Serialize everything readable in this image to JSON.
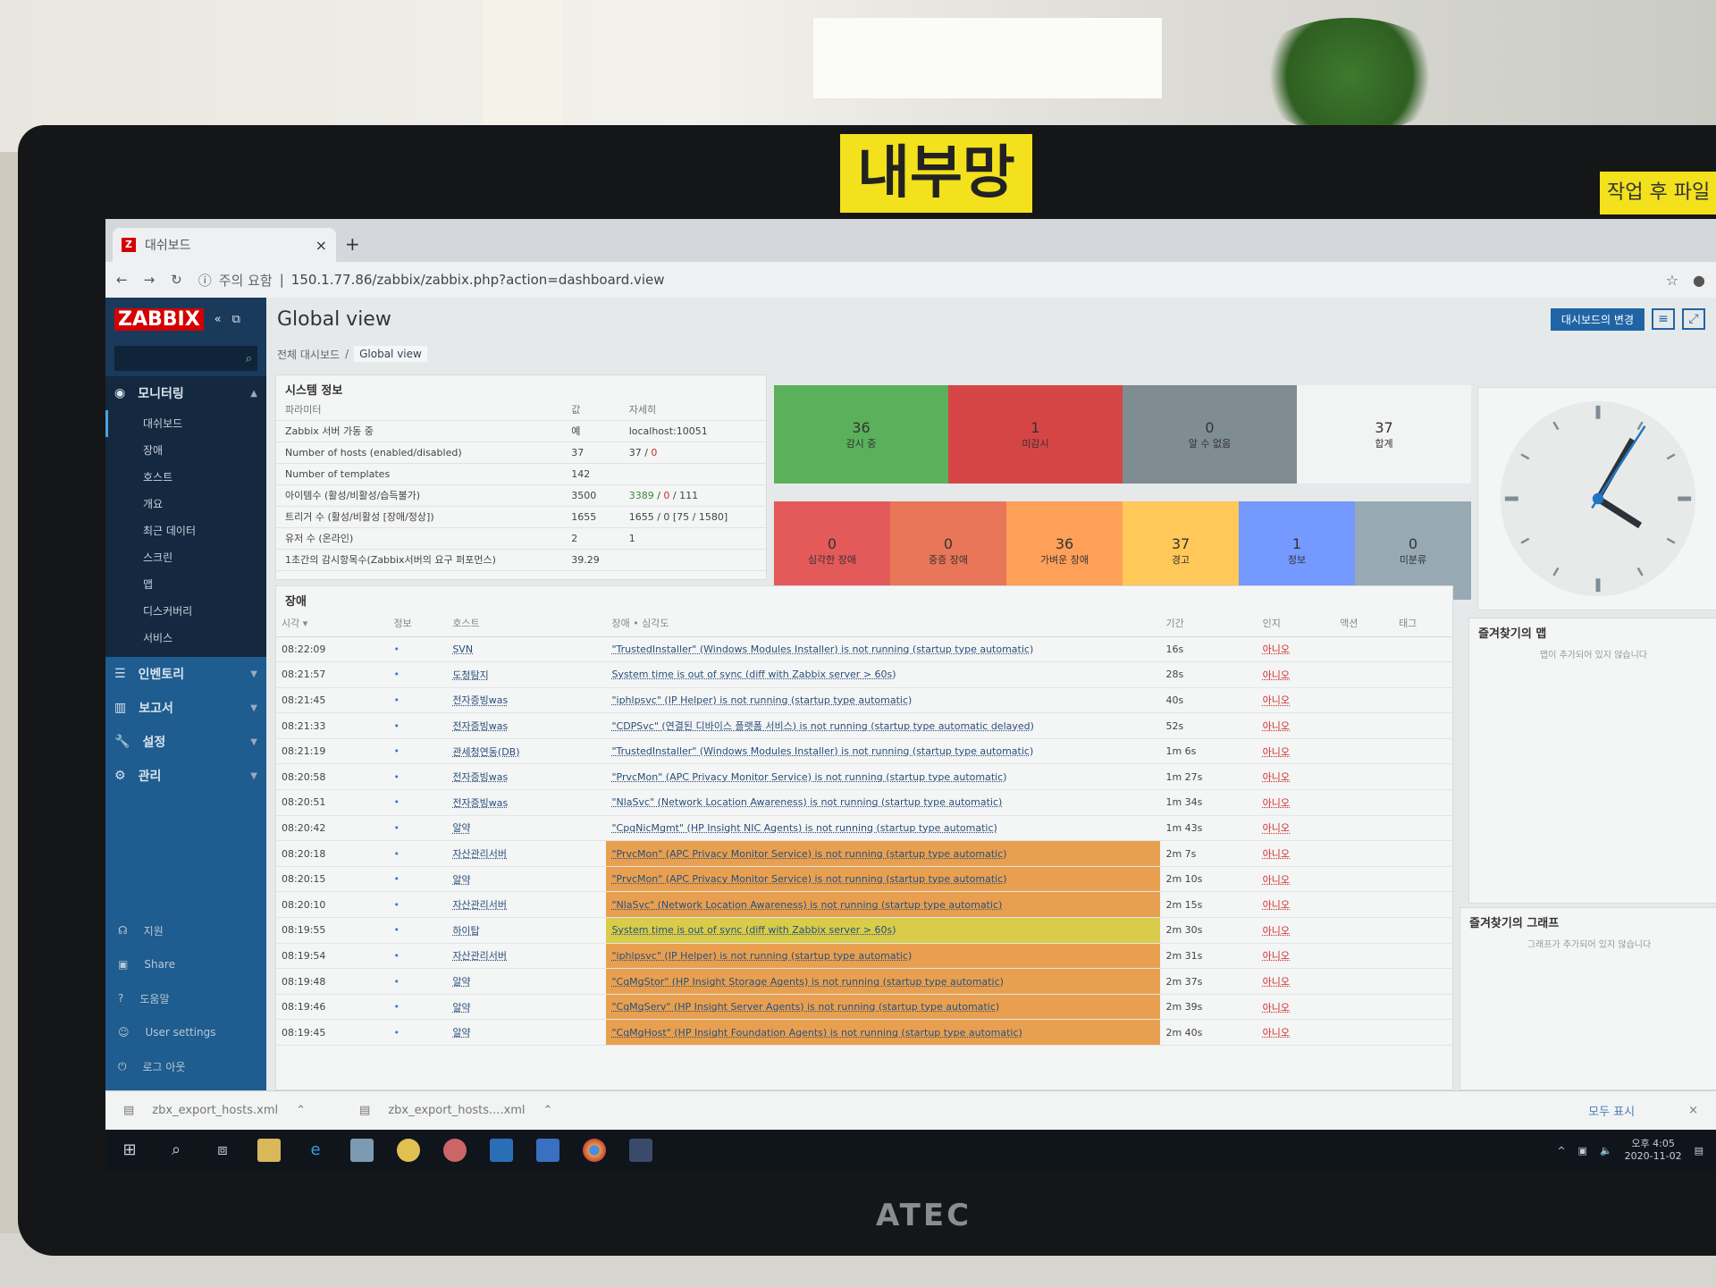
{
  "room": {
    "sticky_note": "내부망",
    "sticky_note2": "작업 후 파일",
    "monitor_brand": "ATEC"
  },
  "browser": {
    "tab_title": "대쉬보드",
    "tab_close": "×",
    "new_tab": "+",
    "security": "주의 요함",
    "url": "150.1.77.86/zabbix/zabbix.php?action=dashboard.view"
  },
  "sidebar": {
    "logo": "ZABBIX",
    "monitoring": "모니터링",
    "monitoring_items": [
      "대쉬보드",
      "장애",
      "호스트",
      "개요",
      "최근 데이터",
      "스크린",
      "맵",
      "디스커버리",
      "서비스"
    ],
    "sections": [
      {
        "label": "인벤토리",
        "icon": "list-icon"
      },
      {
        "label": "보고서",
        "icon": "report-icon"
      },
      {
        "label": "설정",
        "icon": "wrench-icon"
      },
      {
        "label": "관리",
        "icon": "gear-icon"
      }
    ],
    "bottom": [
      {
        "label": "지원",
        "icon": "support-icon"
      },
      {
        "label": "Share",
        "icon": "share-icon"
      },
      {
        "label": "도움말",
        "icon": "help-icon"
      },
      {
        "label": "User settings",
        "icon": "user-icon"
      },
      {
        "label": "로그 아웃",
        "icon": "power-icon"
      }
    ]
  },
  "header": {
    "title": "Global view",
    "edit_dashboard": "대시보드의 변경"
  },
  "breadcrumb": [
    "전체 대시보드",
    "Global view"
  ],
  "system_info": {
    "title": "시스템 정보",
    "columns": [
      "파라미터",
      "값",
      "자세히"
    ],
    "rows": [
      {
        "param": "Zabbix 서버 가동 중",
        "value": "예",
        "detail": "localhost:10051"
      },
      {
        "param": "Number of hosts (enabled/disabled)",
        "value": "37",
        "detail": "37 / 0"
      },
      {
        "param": "Number of templates",
        "value": "142",
        "detail": ""
      },
      {
        "param": "아이템수 (활성/비활성/습득불가)",
        "value": "3500",
        "detail": "3389 / 0 / 111"
      },
      {
        "param": "트리거 수 (활성/비활성 [장애/정상])",
        "value": "1655",
        "detail": "1655 / 0 [75 / 1580]"
      },
      {
        "param": "유저 수 (온라인)",
        "value": "2",
        "detail": "1"
      },
      {
        "param": "1초간의 감시항목수(Zabbix서버의 요구 퍼포먼스)",
        "value": "39.29",
        "detail": ""
      }
    ]
  },
  "host_availability": [
    {
      "count": "36",
      "label": "감시 중",
      "color": "#5bb05b"
    },
    {
      "count": "1",
      "label": "미감시",
      "color": "#d64545"
    },
    {
      "count": "0",
      "label": "알 수 없음",
      "color": "#7f8c92"
    },
    {
      "count": "37",
      "label": "합계",
      "color": "#f2f3f3"
    }
  ],
  "problems_by_severity": [
    {
      "count": "0",
      "label": "심각한 장애",
      "color": "#e45959"
    },
    {
      "count": "0",
      "label": "중증 장애",
      "color": "#e97659"
    },
    {
      "count": "36",
      "label": "가벼운 장애",
      "color": "#ffa059"
    },
    {
      "count": "37",
      "label": "경고",
      "color": "#ffc859"
    },
    {
      "count": "1",
      "label": "정보",
      "color": "#7499ff"
    },
    {
      "count": "0",
      "label": "미분류",
      "color": "#97aab3"
    }
  ],
  "clock": {
    "hours": 4,
    "minutes": 5
  },
  "problems": {
    "title": "장애",
    "columns": [
      "시각 ▾",
      "정보",
      "호스트",
      "장애 • 심각도",
      "기간",
      "인지",
      "액션",
      "태그"
    ],
    "rows": [
      {
        "time": "08:22:09",
        "host": "SVN",
        "desc": "\"TrustedInstaller\" (Windows Modules Installer) is not running (startup type automatic)",
        "duration": "16s",
        "ack": "아니오",
        "severity": ""
      },
      {
        "time": "08:21:57",
        "host": "도청탐지",
        "desc": "System time is out of sync (diff with Zabbix server > 60s)",
        "duration": "28s",
        "ack": "아니오",
        "severity": ""
      },
      {
        "time": "08:21:45",
        "host": "전자증빙was",
        "desc": "\"iphlpsvc\" (IP Helper) is not running (startup type automatic)",
        "duration": "40s",
        "ack": "아니오",
        "severity": ""
      },
      {
        "time": "08:21:33",
        "host": "전자증빙was",
        "desc": "\"CDPSvc\" (연결된 디바이스 플랫폼 서비스) is not running (startup type automatic delayed)",
        "duration": "52s",
        "ack": "아니오",
        "severity": ""
      },
      {
        "time": "08:21:19",
        "host": "관세청연동(DB)",
        "desc": "\"TrustedInstaller\" (Windows Modules Installer) is not running (startup type automatic)",
        "duration": "1m 6s",
        "ack": "아니오",
        "severity": ""
      },
      {
        "time": "08:20:58",
        "host": "전자증빙was",
        "desc": "\"PrvcMon\" (APC Privacy Monitor Service) is not running (startup type automatic)",
        "duration": "1m 27s",
        "ack": "아니오",
        "severity": ""
      },
      {
        "time": "08:20:51",
        "host": "전자증빙was",
        "desc": "\"NlaSvc\" (Network Location Awareness) is not running (startup type automatic)",
        "duration": "1m 34s",
        "ack": "아니오",
        "severity": ""
      },
      {
        "time": "08:20:42",
        "host": "알약",
        "desc": "\"CpqNicMgmt\" (HP Insight NIC Agents) is not running (startup type automatic)",
        "duration": "1m 43s",
        "ack": "아니오",
        "severity": ""
      },
      {
        "time": "08:20:18",
        "host": "자산관리서버",
        "desc": "\"PrvcMon\" (APC Privacy Monitor Service) is not running (startup type automatic)",
        "duration": "2m 7s",
        "ack": "아니오",
        "severity": "#e8a050"
      },
      {
        "time": "08:20:15",
        "host": "알약",
        "desc": "\"PrvcMon\" (APC Privacy Monitor Service) is not running (startup type automatic)",
        "duration": "2m 10s",
        "ack": "아니오",
        "severity": "#e8a050"
      },
      {
        "time": "08:20:10",
        "host": "자산관리서버",
        "desc": "\"NlaSvc\" (Network Location Awareness) is not running (startup type automatic)",
        "duration": "2m 15s",
        "ack": "아니오",
        "severity": "#e8a050"
      },
      {
        "time": "08:19:55",
        "host": "하이탑",
        "desc": "System time is out of sync (diff with Zabbix server > 60s)",
        "duration": "2m 30s",
        "ack": "아니오",
        "severity": "#d8cc4a"
      },
      {
        "time": "08:19:54",
        "host": "자산관리서버",
        "desc": "\"iphlpsvc\" (IP Helper) is not running (startup type automatic)",
        "duration": "2m 31s",
        "ack": "아니오",
        "severity": "#e8a050"
      },
      {
        "time": "08:19:48",
        "host": "알약",
        "desc": "\"CqMgStor\" (HP Insight Storage Agents) is not running (startup type automatic)",
        "duration": "2m 37s",
        "ack": "아니오",
        "severity": "#e8a050"
      },
      {
        "time": "08:19:46",
        "host": "알약",
        "desc": "\"CqMgServ\" (HP Insight Server Agents) is not running (startup type automatic)",
        "duration": "2m 39s",
        "ack": "아니오",
        "severity": "#e8a050"
      },
      {
        "time": "08:19:45",
        "host": "알약",
        "desc": "\"CqMgHost\" (HP Insight Foundation Agents) is not running (startup type automatic)",
        "duration": "2m 40s",
        "ack": "아니오",
        "severity": "#e8a050"
      }
    ]
  },
  "fav_maps": {
    "title": "즐겨찾기의 맵",
    "empty": "맵이 추가되어 있지 않습니다"
  },
  "fav_graphs": {
    "title": "즐겨찾기의 그래프",
    "empty": "그래프가 추가되어 있지 않습니다"
  },
  "downloads": {
    "files": [
      "zbx_export_hosts.xml",
      "zbx_export_hosts....xml"
    ],
    "show_all": "모두 표시",
    "close": "×"
  },
  "taskbar": {
    "time": "오후 4:05",
    "date": "2020-11-02"
  }
}
